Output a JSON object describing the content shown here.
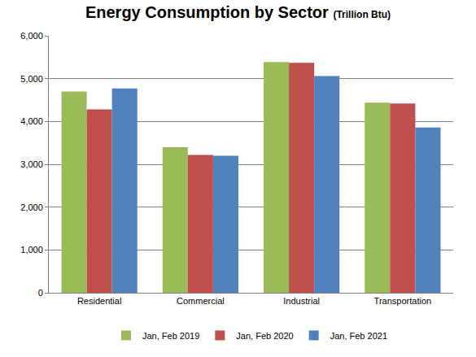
{
  "chart_data": {
    "type": "bar",
    "title": "Energy Consumption by Sector",
    "subtitle": "(Trillion Btu)",
    "categories": [
      "Residential",
      "Commercial",
      "Industrial",
      "Transportation"
    ],
    "series": [
      {
        "name": "Jan, Feb 2019",
        "color": "#9bbb59",
        "values": [
          4700,
          3400,
          5390,
          4440
        ]
      },
      {
        "name": "Jan, Feb 2020",
        "color": "#c0504d",
        "values": [
          4280,
          3220,
          5370,
          4420
        ]
      },
      {
        "name": "Jan, Feb 2021",
        "color": "#4f81bd",
        "values": [
          4770,
          3200,
          5060,
          3860
        ]
      }
    ],
    "ylim": [
      0,
      6000
    ],
    "yticks": [
      0,
      {
        "value": 1000,
        "label": "1,000"
      },
      {
        "value": 2000,
        "label": "2,000"
      },
      {
        "value": 3000,
        "label": "3,000"
      },
      {
        "value": 4000,
        "label": "4,000"
      },
      {
        "value": 5000,
        "label": "5,000"
      },
      {
        "value": 6000,
        "label": "6,000"
      }
    ],
    "grid": true,
    "legend": "bottom"
  }
}
